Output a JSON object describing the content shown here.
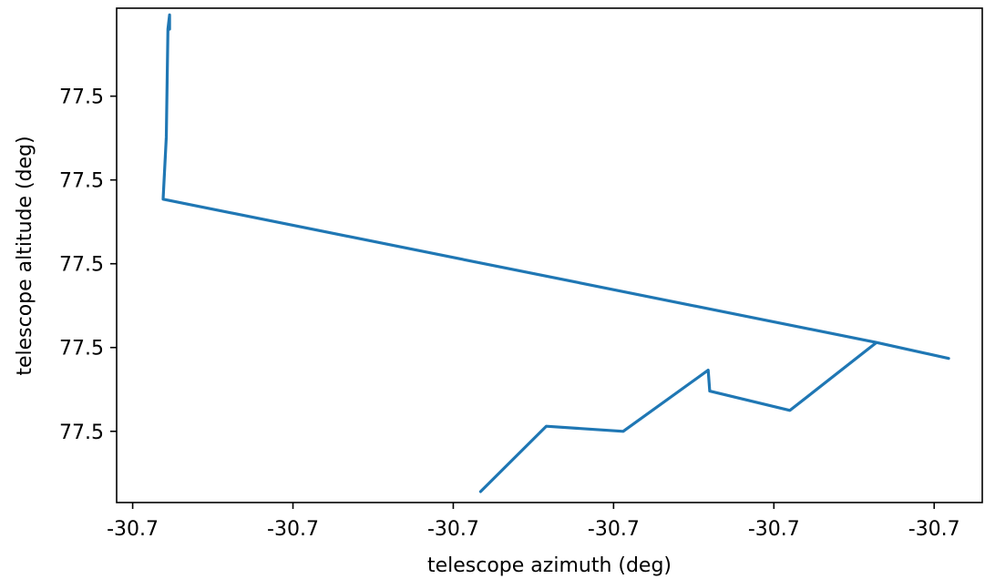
{
  "chart_data": {
    "type": "line",
    "title": "",
    "xlabel": "telescope azimuth (deg)",
    "ylabel": "telescope altitude (deg)",
    "xlim": [
      -0.1,
      5.3
    ],
    "ylim": [
      -0.85,
      5.05
    ],
    "x_ticks": [
      {
        "v": 0,
        "label": "-30.7"
      },
      {
        "v": 1,
        "label": "-30.7"
      },
      {
        "v": 2,
        "label": "-30.7"
      },
      {
        "v": 3,
        "label": "-30.7"
      },
      {
        "v": 4,
        "label": "-30.7"
      },
      {
        "v": 5,
        "label": "-30.7"
      }
    ],
    "y_ticks": [
      {
        "v": 0,
        "label": "77.5"
      },
      {
        "v": 1,
        "label": "77.5"
      },
      {
        "v": 2,
        "label": "77.5"
      },
      {
        "v": 3,
        "label": "77.5"
      },
      {
        "v": 4,
        "label": "77.5"
      }
    ],
    "grid": false,
    "series": [
      {
        "color": "#1f77b4",
        "x": [
          2.17,
          2.58,
          3.06,
          3.59,
          3.6,
          4.1,
          4.64,
          5.09,
          4.64,
          0.19,
          0.21,
          0.22,
          0.23,
          0.23
        ],
        "y": [
          -0.72,
          0.06,
          0.0,
          0.73,
          0.48,
          0.25,
          1.06,
          0.87,
          1.06,
          2.77,
          3.51,
          4.8,
          4.97,
          4.8
        ]
      }
    ]
  }
}
